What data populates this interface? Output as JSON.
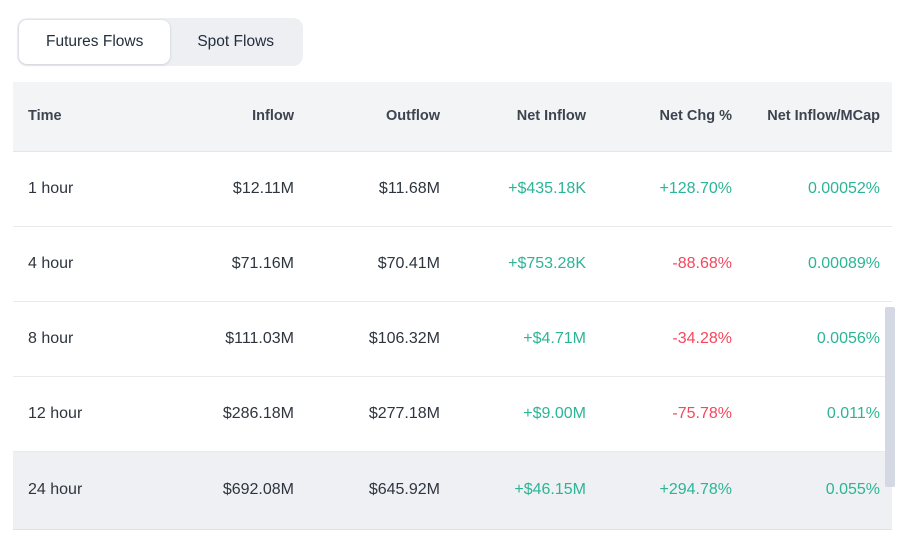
{
  "tabs": {
    "items": [
      {
        "label": "Futures Flows",
        "active": true
      },
      {
        "label": "Spot Flows",
        "active": false
      }
    ]
  },
  "table": {
    "columns": [
      "Time",
      "Inflow",
      "Outflow",
      "Net Inflow",
      "Net Chg %",
      "Net Inflow/MCap"
    ],
    "rows": [
      {
        "time": "1 hour",
        "inflow": "$12.11M",
        "outflow": "$11.68M",
        "net_inflow": "+$435.18K",
        "net_chg": "+128.70%",
        "net_inflow_mcap": "0.00052%"
      },
      {
        "time": "4 hour",
        "inflow": "$71.16M",
        "outflow": "$70.41M",
        "net_inflow": "+$753.28K",
        "net_chg": "-88.68%",
        "net_inflow_mcap": "0.00089%"
      },
      {
        "time": "8 hour",
        "inflow": "$111.03M",
        "outflow": "$106.32M",
        "net_inflow": "+$4.71M",
        "net_chg": "-34.28%",
        "net_inflow_mcap": "0.0056%"
      },
      {
        "time": "12 hour",
        "inflow": "$286.18M",
        "outflow": "$277.18M",
        "net_inflow": "+$9.00M",
        "net_chg": "-75.78%",
        "net_inflow_mcap": "0.011%"
      },
      {
        "time": "24 hour",
        "inflow": "$692.08M",
        "outflow": "$645.92M",
        "net_inflow": "+$46.15M",
        "net_chg": "+294.78%",
        "net_inflow_mcap": "0.055%"
      }
    ]
  },
  "colors": {
    "positive": "#2bb596",
    "negative": "#f5465c",
    "header_bg": "#f2f4f6",
    "header_text": "#3d4450",
    "body_text": "#2e353e",
    "highlight_row_bg": "#eef0f3",
    "tab_group_bg": "#edeff3",
    "tab_text": "#242e3e",
    "scrollbar": "#d3d8e2"
  }
}
